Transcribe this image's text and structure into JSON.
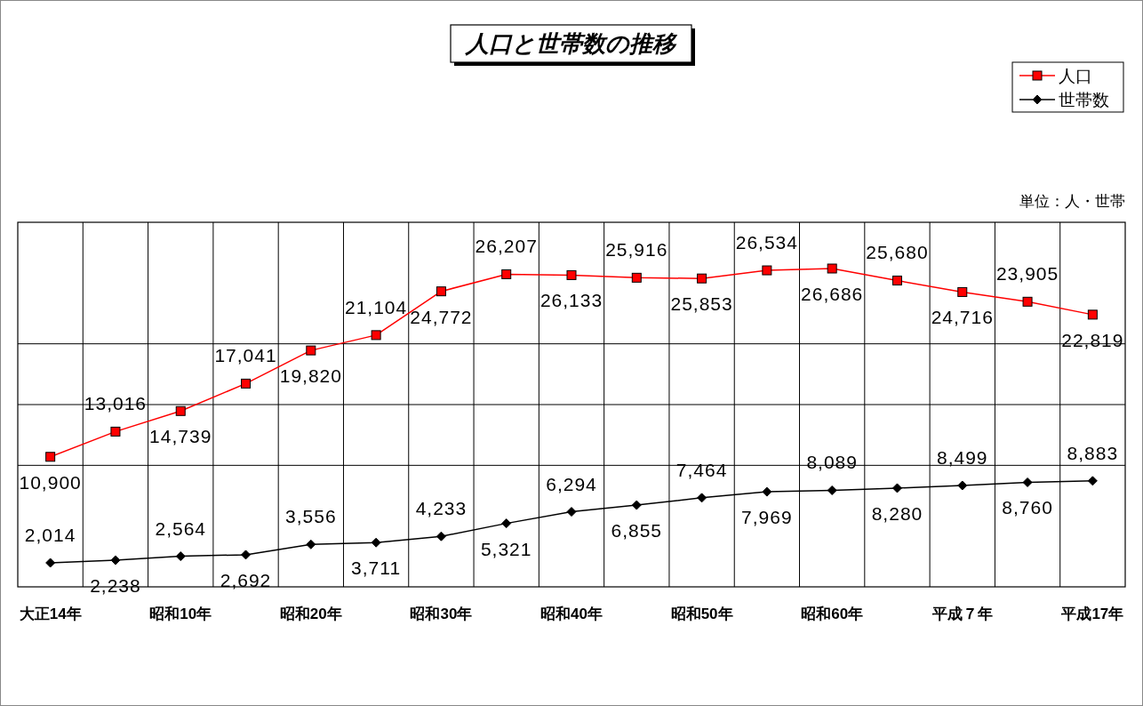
{
  "chart_data": {
    "type": "line",
    "title": "人口と世帯数の推移",
    "categories": [
      "大正14年",
      null,
      "昭和10年",
      null,
      "昭和20年",
      null,
      "昭和30年",
      null,
      "昭和40年",
      null,
      "昭和50年",
      null,
      "昭和60年",
      null,
      "平成７年",
      null,
      "平成17年"
    ],
    "series": [
      {
        "name": "人口",
        "color": "#ff0000",
        "marker": "square",
        "values": [
          10900,
          13016,
          14739,
          17041,
          19820,
          21104,
          24772,
          26207,
          26133,
          25916,
          25853,
          26534,
          26686,
          25680,
          24716,
          23905,
          22819
        ],
        "value_labels": [
          "10,900",
          "13,016",
          "14,739",
          "17,041",
          "19,820",
          "21,104",
          "24,772",
          "26,207",
          "26,133",
          "25,916",
          "25,853",
          "26,534",
          "26,686",
          "25,680",
          "24,716",
          "23,905",
          "22,819"
        ]
      },
      {
        "name": "世帯数",
        "color": "#000000",
        "marker": "diamond",
        "values": [
          2014,
          2238,
          2564,
          2692,
          3556,
          3711,
          4233,
          5321,
          6294,
          6855,
          7464,
          7969,
          8089,
          8280,
          8499,
          8760,
          8883
        ],
        "value_labels": [
          "2,014",
          "2,238",
          "2,564",
          "2,692",
          "3,556",
          "3,711",
          "4,233",
          "5,321",
          "6,294",
          "6,855",
          "7,464",
          "7,969",
          "8,089",
          "8,280",
          "8,499",
          "8,760",
          "8,883"
        ]
      }
    ],
    "grid": true,
    "legend": "top right",
    "annotations": [
      "単位：人・世帯"
    ]
  }
}
